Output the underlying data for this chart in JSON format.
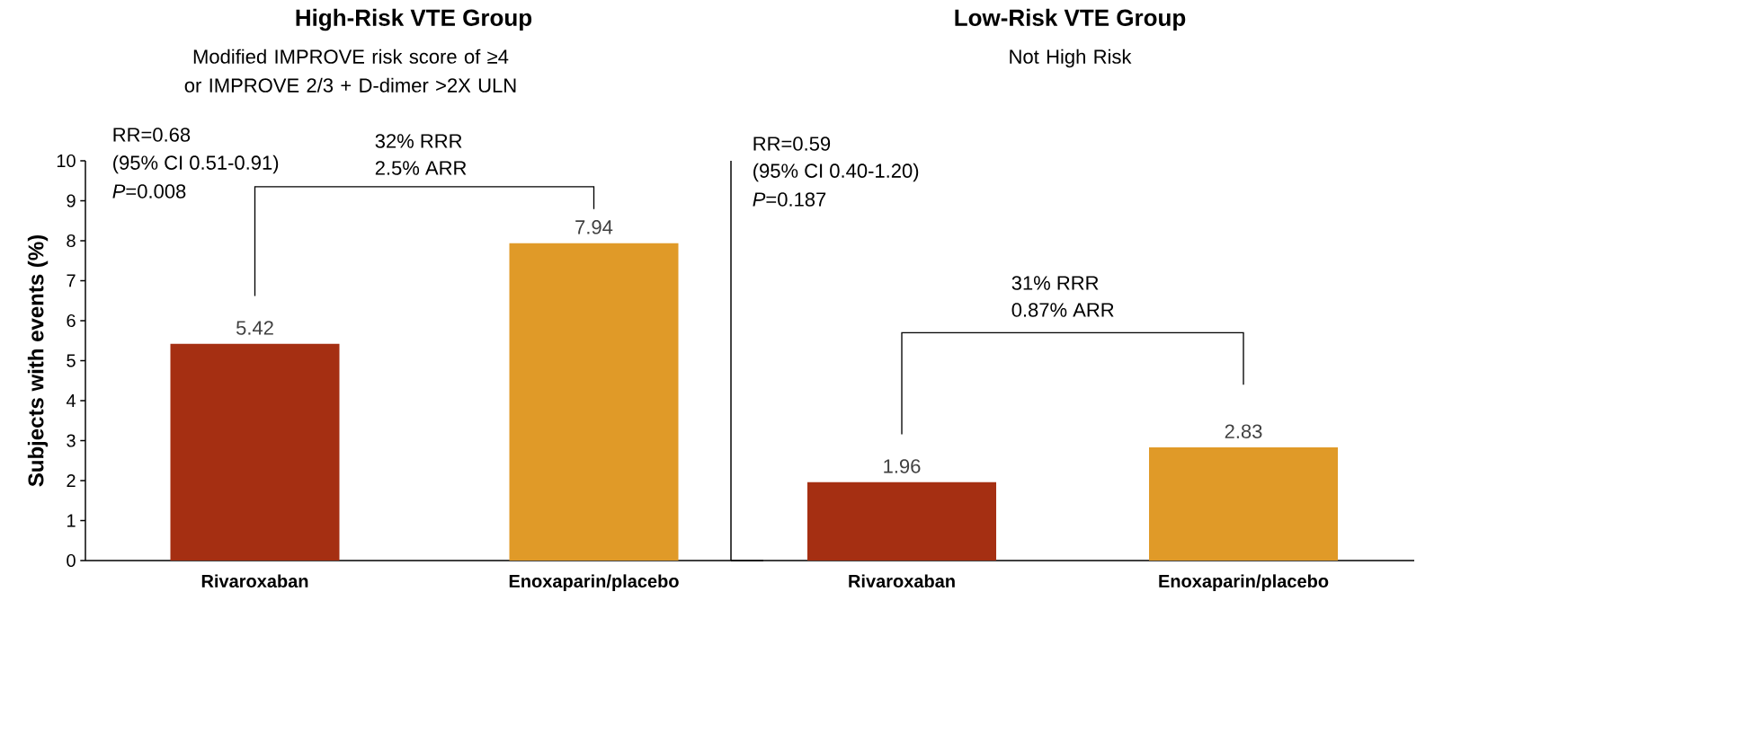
{
  "chart_data": [
    {
      "type": "bar",
      "title": "High-Risk VTE Group",
      "subtitle": "Modified IMPROVE risk score of ≥4 or IMPROVE 2/3 + D-dimer >2X ULN",
      "ylabel": "Subjects with events (%)",
      "categories": [
        "Rivaroxaban",
        "Enoxaparin/placebo"
      ],
      "values": [
        5.42,
        7.94
      ],
      "colors": [
        "#a52f12",
        "#e09a28"
      ],
      "data_labels": true,
      "ylim": [
        0,
        10
      ],
      "yticks": [
        0,
        1,
        2,
        3,
        4,
        5,
        6,
        7,
        8,
        9,
        10
      ],
      "annotations": [
        "RR=0.68",
        "(95% CI 0.51-0.91)",
        "*P*=0.008",
        "32% RRR",
        "2.5% ARR"
      ]
    },
    {
      "type": "bar",
      "title": "Low-Risk VTE Group",
      "subtitle": "Not High Risk",
      "categories": [
        "Rivaroxaban",
        "Enoxaparin/placebo"
      ],
      "values": [
        1.96,
        2.83
      ],
      "colors": [
        "#a52f12",
        "#e09a28"
      ],
      "data_labels": true,
      "ylim": [
        0,
        10
      ],
      "tick_labels": "x",
      "annotations": [
        "RR=0.59",
        "(95% CI 0.40-1.20)",
        "*P*=0.187",
        "31% RRR",
        "0.87% ARR"
      ]
    }
  ]
}
